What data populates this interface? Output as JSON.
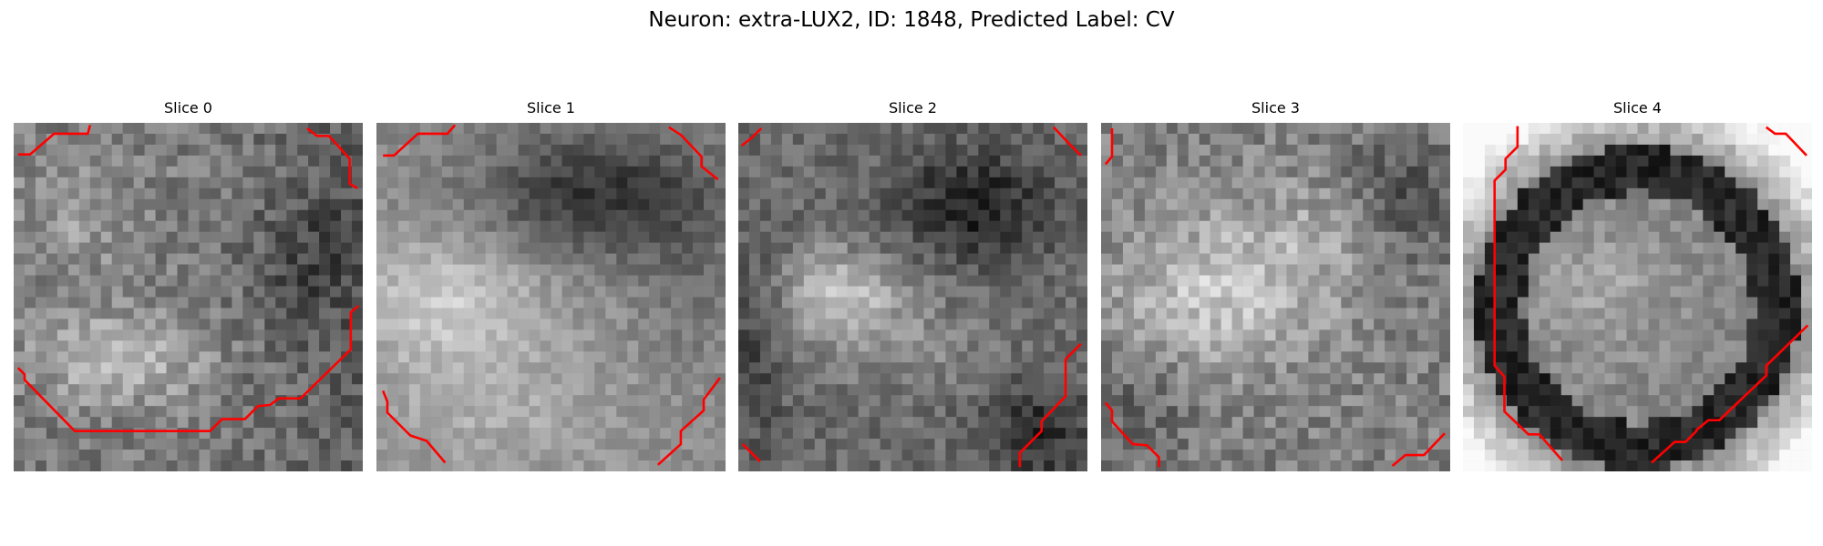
{
  "figure": {
    "title": "Neuron: extra-LUX2, ID: 1848, Predicted Label: CV"
  },
  "panels": [
    {
      "title": "Slice 0",
      "overlay_color": "#ff0000"
    },
    {
      "title": "Slice 1",
      "overlay_color": "#ff0000"
    },
    {
      "title": "Slice 2",
      "overlay_color": "#ff0000"
    },
    {
      "title": "Slice 3",
      "overlay_color": "#ff0000"
    },
    {
      "title": "Slice 4",
      "overlay_color": "#ff0000"
    }
  ]
}
